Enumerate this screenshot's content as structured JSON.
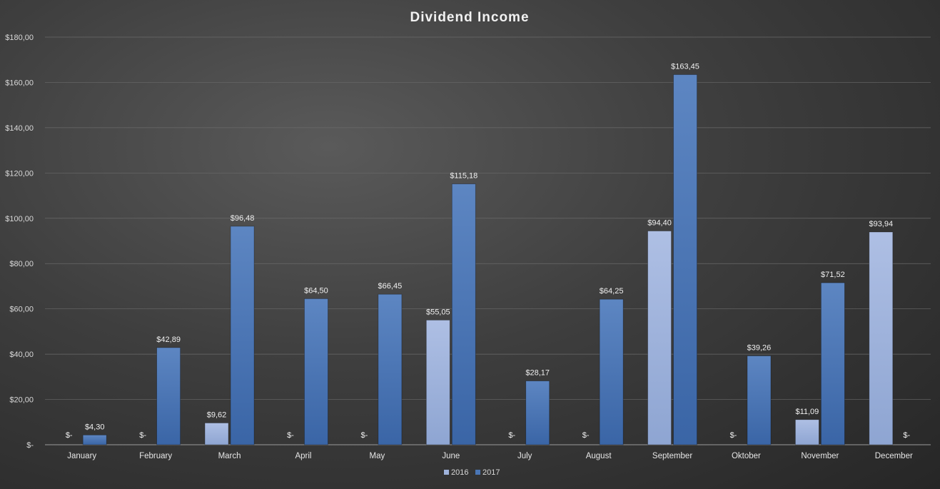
{
  "chart_data": {
    "type": "bar",
    "title": "Dividend Income",
    "categories": [
      "January",
      "February",
      "March",
      "April",
      "May",
      "June",
      "July",
      "August",
      "September",
      "Oktober",
      "November",
      "December"
    ],
    "series": [
      {
        "name": "2016",
        "color": "#9fb3dc",
        "values": [
          0,
          0,
          9.62,
          0,
          0,
          55.05,
          0,
          0,
          94.4,
          0,
          11.09,
          93.94
        ],
        "labels": [
          "$-",
          "$-",
          "$9,62",
          "$-",
          "$-",
          "$55,05",
          "$-",
          "$-",
          "$94,40",
          "$-",
          "$11,09",
          "$93,94"
        ]
      },
      {
        "name": "2017",
        "color": "#4a76b5",
        "values": [
          4.3,
          42.89,
          96.48,
          64.5,
          66.45,
          115.18,
          28.17,
          64.25,
          163.45,
          39.26,
          71.52,
          0
        ],
        "labels": [
          "$4,30",
          "$42,89",
          "$96,48",
          "$64,50",
          "$66,45",
          "$115,18",
          "$28,17",
          "$64,25",
          "$163,45",
          "$39,26",
          "$71,52",
          "$-"
        ]
      }
    ],
    "ylim": [
      0,
      180
    ],
    "yticks": [
      {
        "value": 0,
        "label": "$-"
      },
      {
        "value": 20,
        "label": "$20,00"
      },
      {
        "value": 40,
        "label": "$40,00"
      },
      {
        "value": 60,
        "label": "$60,00"
      },
      {
        "value": 80,
        "label": "$80,00"
      },
      {
        "value": 100,
        "label": "$100,00"
      },
      {
        "value": 120,
        "label": "$120,00"
      },
      {
        "value": 140,
        "label": "$140,00"
      },
      {
        "value": 160,
        "label": "$160,00"
      },
      {
        "value": 180,
        "label": "$180,00"
      }
    ],
    "grid": true,
    "legend": "bottom"
  }
}
